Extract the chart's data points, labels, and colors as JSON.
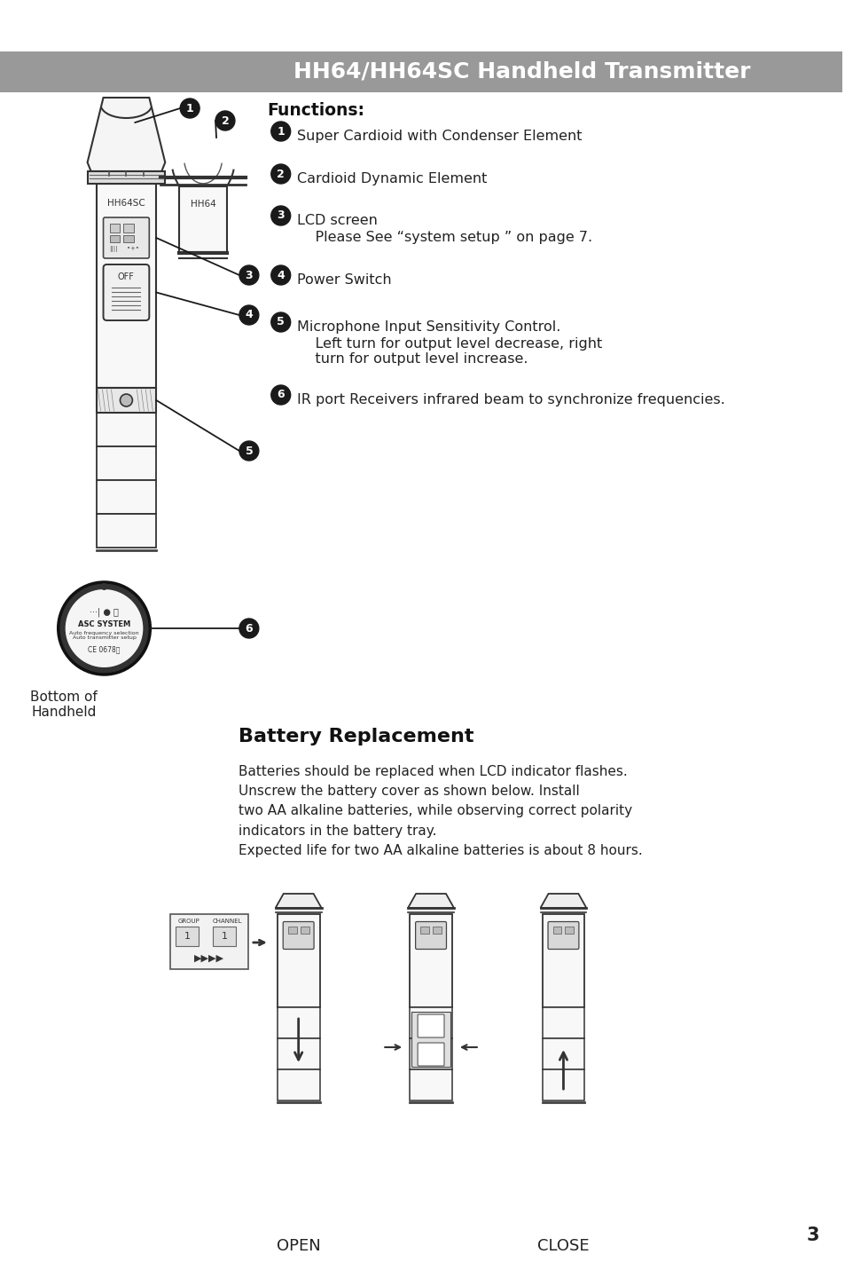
{
  "title": "HH64/HH64SC Handheld Transmitter",
  "title_bg": "#999999",
  "title_color": "#ffffff",
  "page_bg": "#ffffff",
  "functions_title": "Functions:",
  "battery_title": "Battery Replacement",
  "battery_text": "Batteries should be replaced when LCD indicator flashes.\nUnscrew the battery cover as shown below. Install\ntwo AA alkaline batteries, while observing correct polarity\nindicators in the battery tray.\nExpected life for two AA alkaline batteries is about 8 hours.",
  "bottom_label": "Bottom of\nHandheld",
  "open_label": "OPEN",
  "close_label": "CLOSE",
  "page_number": "3",
  "func_items": [
    {
      "num": "1",
      "line1": "Super Cardioid with Condenser Element",
      "line2": null
    },
    {
      "num": "2",
      "line1": "Cardioid Dynamic Element",
      "line2": null
    },
    {
      "num": "3",
      "line1": "LCD screen",
      "line2": "    Please See “system setup ” on page 7."
    },
    {
      "num": "4",
      "line1": "Power Switch",
      "line2": null
    },
    {
      "num": "5",
      "line1": "Microphone Input Sensitivity Control.",
      "line2": "    Left turn for output level decrease, right\n    turn for output level increase."
    },
    {
      "num": "6",
      "line1": "IR port Receivers infrared beam to synchronize frequencies.",
      "line2": null
    }
  ]
}
